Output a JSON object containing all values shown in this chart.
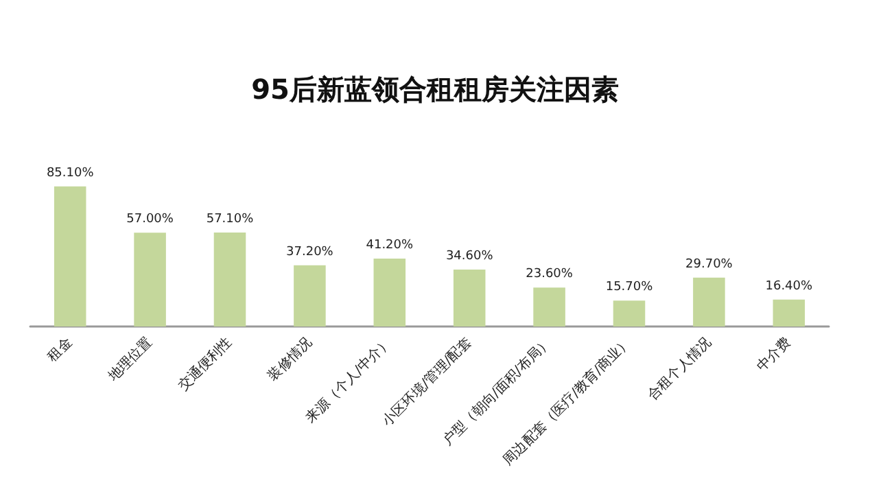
{
  "chart_data": {
    "type": "bar",
    "title": "95后新蓝领合租租房关注因素",
    "categories": [
      "租金",
      "地理位置",
      "交通便利性",
      "装修情况",
      "来源（个人/中介）",
      "小区环境/管理/配套",
      "户型（朝向/面积/布局）",
      "周边配套（医疗/教育/商业）",
      "合租个人情况",
      "中介费"
    ],
    "values": [
      85.1,
      57.0,
      57.1,
      37.2,
      41.2,
      34.6,
      23.6,
      15.7,
      29.7,
      16.4
    ],
    "value_labels": [
      "85.10%",
      "57.00%",
      "57.10%",
      "37.20%",
      "41.20%",
      "34.60%",
      "23.60%",
      "15.70%",
      "29.70%",
      "16.40%"
    ],
    "color": "#c4d79b"
  }
}
